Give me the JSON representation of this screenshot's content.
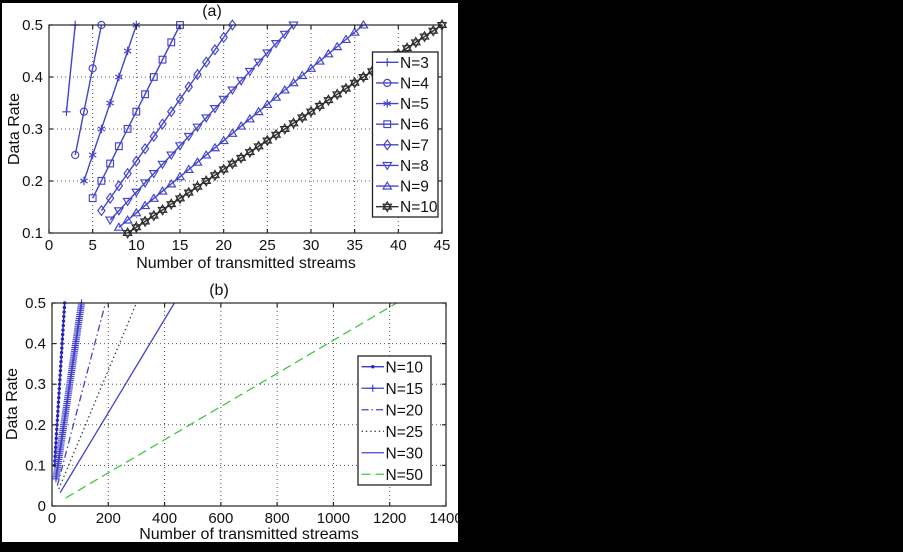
{
  "figure": {
    "background": "#ffffff",
    "outer_background": "#000000",
    "axis_color": "#262626",
    "grid_color": "#555555"
  },
  "chart_data": [
    {
      "id": "a",
      "type": "line",
      "title": "(a)",
      "xlabel": "Number of transmitted streams",
      "ylabel": "Data Rate",
      "xlim": [
        0,
        45
      ],
      "ylim": [
        0.1,
        0.5
      ],
      "xticks": [
        0,
        5,
        10,
        15,
        20,
        25,
        30,
        35,
        40,
        45
      ],
      "yticks": [
        0.1,
        0.2,
        0.3,
        0.4,
        0.5
      ],
      "grid": true,
      "legend_position": "right",
      "series": [
        {
          "name": "N=3",
          "color": "#4343cd",
          "line": "solid",
          "marker": "plus",
          "x_start": 2,
          "y_start": 0.333,
          "x_end": 3,
          "y_end": 0.5,
          "marker_every": 1,
          "slope": 0.1667
        },
        {
          "name": "N=4",
          "color": "#4343cd",
          "line": "solid",
          "marker": "circle",
          "x_start": 3,
          "y_start": 0.25,
          "x_end": 6,
          "y_end": 0.5,
          "marker_every": 1,
          "slope": 0.0833
        },
        {
          "name": "N=5",
          "color": "#4343cd",
          "line": "solid",
          "marker": "asterisk",
          "x_start": 4,
          "y_start": 0.2,
          "x_end": 10,
          "y_end": 0.5,
          "marker_every": 1,
          "slope": 0.05
        },
        {
          "name": "N=6",
          "color": "#4343cd",
          "line": "solid",
          "marker": "square",
          "x_start": 5,
          "y_start": 0.167,
          "x_end": 15,
          "y_end": 0.5,
          "marker_every": 1,
          "slope": 0.0333
        },
        {
          "name": "N=7",
          "color": "#4343cd",
          "line": "solid",
          "marker": "diamond",
          "x_start": 6,
          "y_start": 0.143,
          "x_end": 21,
          "y_end": 0.5,
          "marker_every": 1,
          "slope": 0.0238
        },
        {
          "name": "N=8",
          "color": "#4343cd",
          "line": "solid",
          "marker": "triangle-down",
          "x_start": 7,
          "y_start": 0.125,
          "x_end": 28,
          "y_end": 0.5,
          "marker_every": 1,
          "slope": 0.0179
        },
        {
          "name": "N=9",
          "color": "#4343cd",
          "line": "solid",
          "marker": "triangle-up",
          "x_start": 8,
          "y_start": 0.111,
          "x_end": 36,
          "y_end": 0.5,
          "marker_every": 1,
          "slope": 0.0139
        },
        {
          "name": "N=10",
          "color": "#2e2e2e",
          "line": "solid",
          "marker": "hexagram",
          "x_start": 9,
          "y_start": 0.1,
          "x_end": 45,
          "y_end": 0.5,
          "marker_every": 1,
          "slope": 0.0111
        }
      ]
    },
    {
      "id": "b",
      "type": "line",
      "title": "(b)",
      "xlabel": "Number of transmitted streams",
      "ylabel": "Data Rate",
      "xlim": [
        0,
        1400
      ],
      "ylim": [
        0,
        0.5
      ],
      "xticks": [
        0,
        200,
        400,
        600,
        800,
        1000,
        1200,
        1400
      ],
      "yticks": [
        0,
        0.1,
        0.2,
        0.3,
        0.4,
        0.5
      ],
      "grid": true,
      "legend_position": "right",
      "series": [
        {
          "name": "N=10",
          "color": "#2626bd",
          "line": "solid",
          "marker": "dot",
          "x_start": 9,
          "y_start": 0.1,
          "x_end": 45,
          "y_end": 0.5,
          "marker_every": 1,
          "slope": 0.0111
        },
        {
          "name": "N=15",
          "color": "#4343cd",
          "line": "solid",
          "marker": "plus",
          "x_start": 14,
          "y_start": 0.067,
          "x_end": 105,
          "y_end": 0.5,
          "marker_every": 1,
          "slope": 0.00476
        },
        {
          "name": "N=20",
          "color": "#4343cd",
          "line": "dashdot",
          "marker": "none",
          "x_start": 19,
          "y_start": 0.05,
          "x_end": 190,
          "y_end": 0.5,
          "slope": 0.00263
        },
        {
          "name": "N=25",
          "color": "#3f3f3f",
          "line": "dot",
          "marker": "none",
          "x_start": 24,
          "y_start": 0.042,
          "x_end": 300,
          "y_end": 0.5,
          "slope": 0.00167
        },
        {
          "name": "N=30",
          "color": "#4343cd",
          "line": "solid",
          "marker": "none",
          "x_start": 29,
          "y_start": 0.033,
          "x_end": 435,
          "y_end": 0.5,
          "slope": 0.00115
        },
        {
          "name": "N=50",
          "color": "#42c642",
          "line": "dash",
          "marker": "none",
          "x_start": 49,
          "y_start": 0.02,
          "x_end": 1225,
          "y_end": 0.5,
          "slope": 0.000408
        }
      ]
    }
  ]
}
